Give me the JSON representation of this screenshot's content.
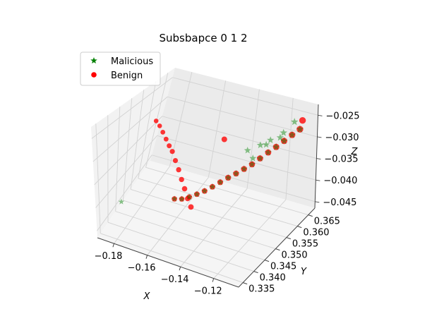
{
  "chart_data": {
    "type": "scatter",
    "projection": "3d",
    "title": "Subsbapce 0 1 2",
    "xlabel": "X",
    "ylabel": "Y",
    "zlabel": "Z",
    "xlim": [
      -0.19,
      -0.105
    ],
    "ylim": [
      0.333,
      0.368
    ],
    "zlim": [
      -0.0465,
      -0.0225
    ],
    "xticks": [
      -0.18,
      -0.16,
      -0.14,
      -0.12
    ],
    "xtick_labels": [
      "−0.18",
      "−0.16",
      "−0.14",
      "−0.12"
    ],
    "yticks": [
      0.335,
      0.34,
      0.345,
      0.35,
      0.355,
      0.36,
      0.365
    ],
    "ytick_labels": [
      "0.335",
      "0.340",
      "0.345",
      "0.350",
      "0.355",
      "0.360",
      "0.365"
    ],
    "zticks": [
      -0.045,
      -0.04,
      -0.035,
      -0.03,
      -0.025
    ],
    "ztick_labels": [
      "−0.045",
      "−0.040",
      "−0.035",
      "−0.030",
      "−0.025"
    ],
    "grid": true,
    "legend_position": "top-left",
    "series": [
      {
        "name": "Malicious",
        "marker": "star",
        "color": "#008000",
        "points": [
          [
            -0.178,
            0.336,
            -0.0385
          ],
          [
            -0.1605,
            0.3483,
            -0.0414
          ],
          [
            -0.1575,
            0.3494,
            -0.0416
          ],
          [
            -0.1545,
            0.3505,
            -0.0413
          ],
          [
            -0.1515,
            0.3516,
            -0.0408
          ],
          [
            -0.1485,
            0.3527,
            -0.0402
          ],
          [
            -0.1455,
            0.3538,
            -0.0394
          ],
          [
            -0.1425,
            0.3549,
            -0.0385
          ],
          [
            -0.1395,
            0.356,
            -0.0376
          ],
          [
            -0.1365,
            0.3571,
            -0.0368
          ],
          [
            -0.1335,
            0.3582,
            -0.0359
          ],
          [
            -0.1305,
            0.3593,
            -0.035
          ],
          [
            -0.1275,
            0.3604,
            -0.0338
          ],
          [
            -0.1245,
            0.3615,
            -0.0326
          ],
          [
            -0.1215,
            0.3626,
            -0.0315
          ],
          [
            -0.1185,
            0.3637,
            -0.0303
          ],
          [
            -0.1155,
            0.3648,
            -0.0291
          ],
          [
            -0.1125,
            0.3659,
            -0.028
          ],
          [
            -0.128,
            0.3605,
            -0.0308
          ],
          [
            -0.124,
            0.3618,
            -0.0298
          ],
          [
            -0.133,
            0.3588,
            -0.0318
          ],
          [
            -0.119,
            0.3636,
            -0.0284
          ],
          [
            -0.115,
            0.3652,
            -0.0262
          ],
          [
            -0.131,
            0.36,
            -0.034
          ],
          [
            -0.126,
            0.3616,
            -0.031
          ],
          [
            -0.1205,
            0.3634,
            -0.0296
          ]
        ]
      },
      {
        "name": "Benign",
        "marker": "circle",
        "color": "#ff0000",
        "points": [
          [
            -0.186,
            0.36,
            -0.0318
          ],
          [
            -0.183,
            0.3593,
            -0.0323
          ],
          [
            -0.18,
            0.3585,
            -0.0331
          ],
          [
            -0.177,
            0.3577,
            -0.034
          ],
          [
            -0.174,
            0.3568,
            -0.0348
          ],
          [
            -0.171,
            0.3558,
            -0.0353
          ],
          [
            -0.168,
            0.355,
            -0.0367
          ],
          [
            -0.165,
            0.3542,
            -0.0381
          ],
          [
            -0.162,
            0.3532,
            -0.0395
          ],
          [
            -0.159,
            0.3522,
            -0.0408
          ],
          [
            -0.156,
            0.3512,
            -0.0422
          ],
          [
            -0.153,
            0.3503,
            -0.0433
          ],
          [
            -0.1605,
            0.3483,
            -0.0414
          ],
          [
            -0.1575,
            0.3494,
            -0.0416
          ],
          [
            -0.1545,
            0.3505,
            -0.0413
          ],
          [
            -0.1515,
            0.3516,
            -0.0408
          ],
          [
            -0.1485,
            0.3527,
            -0.0402
          ],
          [
            -0.1455,
            0.3538,
            -0.0394
          ],
          [
            -0.1425,
            0.3549,
            -0.0385
          ],
          [
            -0.1395,
            0.356,
            -0.0376
          ],
          [
            -0.1365,
            0.3571,
            -0.0368
          ],
          [
            -0.1335,
            0.3582,
            -0.0359
          ],
          [
            -0.1305,
            0.3593,
            -0.035
          ],
          [
            -0.1275,
            0.3604,
            -0.0338
          ],
          [
            -0.1245,
            0.3615,
            -0.0326
          ],
          [
            -0.1215,
            0.3626,
            -0.0315
          ],
          [
            -0.1185,
            0.3637,
            -0.0303
          ],
          [
            -0.1155,
            0.3648,
            -0.0291
          ],
          [
            -0.1125,
            0.3659,
            -0.028
          ],
          [
            -0.112,
            0.3665,
            -0.0262
          ],
          [
            -0.1455,
            0.358,
            -0.0303
          ]
        ]
      }
    ]
  }
}
